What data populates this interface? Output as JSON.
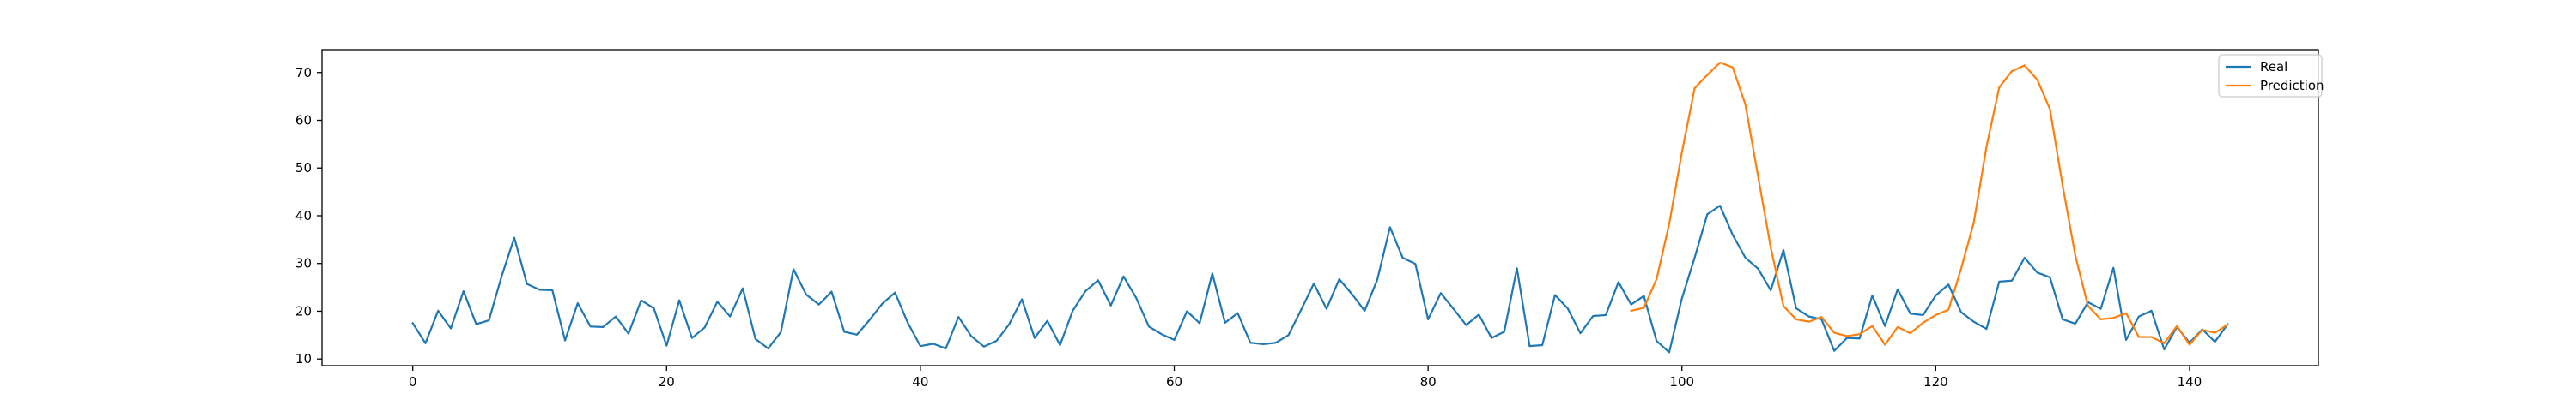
{
  "chart_data": {
    "type": "line",
    "xlim": [
      -7.15,
      150.15
    ],
    "ylim": [
      8.6,
      74.8
    ],
    "x_ticks": [
      0,
      20,
      40,
      60,
      80,
      100,
      120,
      140
    ],
    "y_ticks": [
      10,
      20,
      30,
      40,
      50,
      60,
      70
    ],
    "grid": false,
    "legend_position": "top-right",
    "series": [
      {
        "name": "Real",
        "color": "#1f77b4",
        "x_start": 0,
        "values": [
          17.5,
          13.3,
          20.1,
          16.4,
          24.2,
          17.3,
          18.1,
          27.3,
          35.4,
          25.7,
          24.5,
          24.4,
          13.9,
          21.7,
          16.8,
          16.7,
          18.9,
          15.3,
          22.3,
          20.6,
          12.8,
          22.3,
          14.4,
          16.6,
          22.0,
          18.9,
          24.8,
          14.2,
          12.2,
          15.6,
          28.8,
          23.5,
          21.4,
          24.1,
          15.7,
          15.1,
          18.2,
          21.6,
          23.9,
          17.6,
          12.7,
          13.2,
          12.2,
          18.8,
          14.8,
          12.6,
          13.8,
          17.3,
          22.5,
          14.4,
          18.0,
          12.9,
          20.1,
          24.2,
          26.5,
          21.2,
          27.3,
          22.8,
          16.8,
          15.2,
          14.0,
          20.0,
          17.5,
          27.9,
          17.6,
          19.6,
          13.4,
          13.1,
          13.4,
          15.0,
          20.3,
          25.8,
          20.5,
          26.7,
          23.6,
          20.1,
          26.6,
          37.6,
          31.2,
          29.9,
          18.3,
          23.8,
          20.5,
          17.1,
          19.3,
          14.4,
          15.7,
          29.0,
          12.7,
          12.9,
          23.4,
          20.6,
          15.4,
          19.0,
          19.2,
          26.1,
          21.4,
          23.2,
          13.8,
          11.4,
          22.7,
          31.2,
          40.3,
          42.1,
          36.0,
          31.2,
          28.9,
          24.4,
          32.8,
          20.6,
          18.9,
          18.3,
          11.7,
          14.4,
          14.3,
          23.3,
          16.9,
          24.6,
          19.5,
          19.2,
          23.3,
          25.6,
          19.8,
          17.8,
          16.3,
          26.2,
          26.4,
          31.2,
          28.1,
          27.1,
          18.3,
          17.4,
          21.9,
          20.5,
          29.1,
          14.0,
          18.9,
          20.1,
          12.0,
          16.7,
          13.4,
          16.2,
          13.6,
          17.3
        ]
      },
      {
        "name": "Prediction",
        "color": "#ff7f0e",
        "x_start": 96,
        "values": [
          20.1,
          20.7,
          26.7,
          38.3,
          53.3,
          66.7,
          69.5,
          72.1,
          71.1,
          63.3,
          48.3,
          33.3,
          21.1,
          18.3,
          17.8,
          18.8,
          15.5,
          14.8,
          15.2,
          16.9,
          13.0,
          16.7,
          15.4,
          17.6,
          19.2,
          20.3,
          28.9,
          38.6,
          54.5,
          66.9,
          70.3,
          71.5,
          68.5,
          62.3,
          46.3,
          31.6,
          21.1,
          18.3,
          18.6,
          19.6,
          14.6,
          14.6,
          13.3,
          16.9,
          13.0,
          16.1,
          15.5,
          17.2
        ]
      }
    ]
  }
}
